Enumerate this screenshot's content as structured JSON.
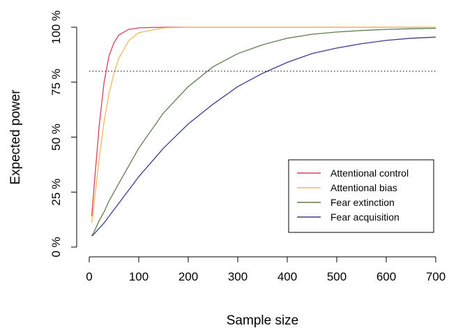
{
  "chart_data": {
    "type": "line",
    "xlabel": "Sample size",
    "ylabel": "Expected power",
    "xlim": [
      0,
      700
    ],
    "ylim": [
      0,
      100
    ],
    "x_ticks": [
      0,
      100,
      200,
      300,
      400,
      500,
      600,
      700
    ],
    "y_ticks": [
      0,
      25,
      50,
      75,
      100
    ],
    "y_tick_labels": [
      "0 %",
      "25 %",
      "50 %",
      "75 %",
      "100 %"
    ],
    "reference_line": {
      "y": 80,
      "style": "dotted"
    },
    "grid": false,
    "legend_position": "bottom-right",
    "x": [
      5,
      10,
      20,
      30,
      40,
      50,
      60,
      80,
      100,
      150,
      200,
      250,
      300,
      350,
      400,
      450,
      500,
      550,
      600,
      650,
      700
    ],
    "series": [
      {
        "name": "Attentional control",
        "color": "#d6405a",
        "values": [
          14,
          28,
          55,
          75,
          87,
          93,
          96.5,
          99,
          99.7,
          100,
          100,
          100,
          100,
          100,
          100,
          100,
          100,
          100,
          100,
          100,
          100
        ]
      },
      {
        "name": "Attentional bias",
        "color": "#f5b65c",
        "values": [
          11,
          20,
          40,
          57,
          70,
          79,
          86,
          94,
          97.5,
          99.7,
          100,
          100,
          100,
          100,
          100,
          100,
          100,
          100,
          100,
          100,
          100
        ]
      },
      {
        "name": "Fear extinction",
        "color": "#5e7c4e",
        "values": [
          5,
          7,
          12,
          16,
          21,
          25,
          29,
          37,
          45,
          61,
          73,
          82,
          88,
          92,
          95,
          96.8,
          97.8,
          98.5,
          99,
          99.3,
          99.5
        ]
      },
      {
        "name": "Fear acquisition",
        "color": "#3c3d8a",
        "values": [
          5,
          6,
          8.5,
          11,
          14,
          17,
          20,
          26,
          32,
          45,
          56,
          65,
          73,
          79,
          84,
          88,
          90.5,
          92.5,
          94,
          95,
          95.5
        ]
      }
    ]
  }
}
